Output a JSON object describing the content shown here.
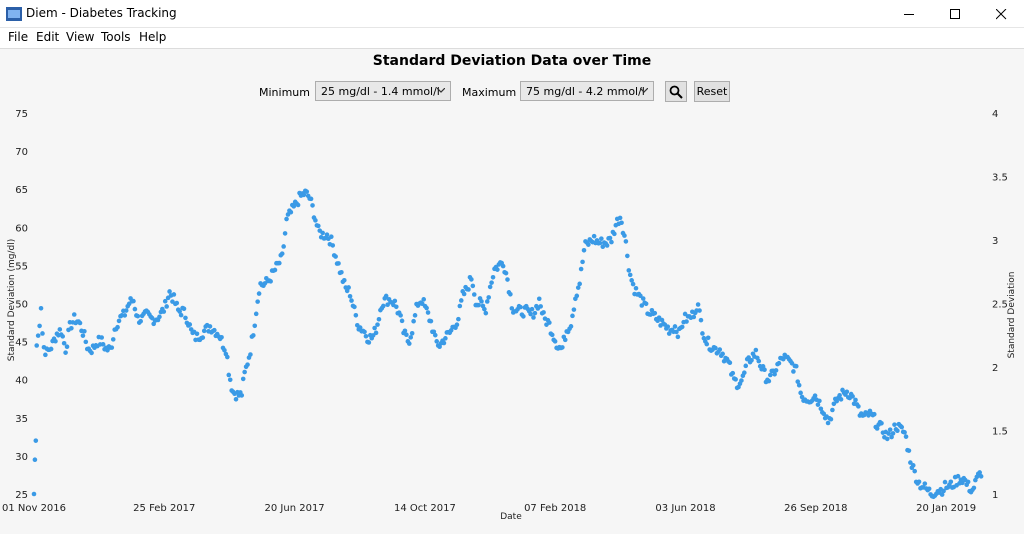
{
  "window": {
    "title": "Diem - Diabetes Tracking"
  },
  "menu": [
    "File",
    "Edit",
    "View",
    "Tools",
    "Help"
  ],
  "controls": {
    "minimum_label": "Minimum",
    "minimum_value": "25 mg/dl - 1.4 mmol/l",
    "maximum_label": "Maximum",
    "maximum_value": "75 mg/dl - 4.2 mmol/l",
    "reset_label": "Reset",
    "search_icon": "search-icon"
  },
  "colors": {
    "point": "#3a9ae6",
    "background": "#f6f6f6"
  },
  "chart_data": {
    "type": "scatter",
    "title": "Standard Deviation Data over Time",
    "xlabel": "Date",
    "ylabel": "Standard Deviation (mg/dl)",
    "y2label": "Standard Deviation",
    "x_ticks": [
      "01 Nov 2016",
      "25 Feb 2017",
      "20 Jun 2017",
      "14 Oct 2017",
      "07 Feb 2018",
      "03 Jun 2018",
      "26 Sep 2018",
      "20 Jan 2019"
    ],
    "ylim": [
      25,
      75
    ],
    "y_ticks": [
      25,
      30,
      35,
      40,
      45,
      50,
      55,
      60,
      65,
      70,
      75
    ],
    "y2lim": [
      1,
      4
    ],
    "y2_ticks": [
      "1",
      "1.5",
      "2",
      "2.5",
      "3",
      "3.5",
      "4"
    ],
    "xlim_days": [
      0,
      1057
    ],
    "grid": false,
    "profile": [
      [
        0,
        25
      ],
      [
        1,
        29.5
      ],
      [
        2,
        32
      ],
      [
        3,
        44.5
      ],
      [
        5,
        46
      ],
      [
        8,
        50
      ],
      [
        10,
        44.5
      ],
      [
        14,
        43.5
      ],
      [
        20,
        44.5
      ],
      [
        25,
        46
      ],
      [
        30,
        46.5
      ],
      [
        35,
        44
      ],
      [
        40,
        47
      ],
      [
        45,
        48
      ],
      [
        50,
        47.5
      ],
      [
        55,
        46
      ],
      [
        60,
        44
      ],
      [
        65,
        44
      ],
      [
        70,
        45
      ],
      [
        75,
        45
      ],
      [
        80,
        44
      ],
      [
        85,
        44
      ],
      [
        90,
        47
      ],
      [
        95,
        48
      ],
      [
        100,
        48.5
      ],
      [
        105,
        50
      ],
      [
        110,
        50.5
      ],
      [
        115,
        48
      ],
      [
        120,
        48
      ],
      [
        125,
        48.5
      ],
      [
        130,
        48
      ],
      [
        135,
        48
      ],
      [
        140,
        48.5
      ],
      [
        145,
        49.5
      ],
      [
        150,
        51.5
      ],
      [
        155,
        50.5
      ],
      [
        160,
        49
      ],
      [
        165,
        49
      ],
      [
        170,
        48
      ],
      [
        175,
        46
      ],
      [
        180,
        45.5
      ],
      [
        185,
        46
      ],
      [
        190,
        46.5
      ],
      [
        195,
        47
      ],
      [
        200,
        46.5
      ],
      [
        205,
        46
      ],
      [
        210,
        44.5
      ],
      [
        213,
        44
      ],
      [
        216,
        41
      ],
      [
        220,
        38.5
      ],
      [
        225,
        38
      ],
      [
        230,
        38
      ],
      [
        233,
        40.5
      ],
      [
        236,
        42
      ],
      [
        240,
        44
      ],
      [
        245,
        48
      ],
      [
        250,
        52.5
      ],
      [
        255,
        52.5
      ],
      [
        260,
        53
      ],
      [
        265,
        54
      ],
      [
        270,
        55
      ],
      [
        275,
        56
      ],
      [
        280,
        61
      ],
      [
        285,
        62
      ],
      [
        290,
        63
      ],
      [
        295,
        64
      ],
      [
        300,
        64.5
      ],
      [
        305,
        64
      ],
      [
        310,
        62
      ],
      [
        315,
        59.5
      ],
      [
        320,
        59
      ],
      [
        325,
        59
      ],
      [
        330,
        58
      ],
      [
        335,
        56
      ],
      [
        340,
        54
      ],
      [
        345,
        52
      ],
      [
        350,
        51.5
      ],
      [
        355,
        49
      ],
      [
        360,
        47
      ],
      [
        365,
        46.5
      ],
      [
        370,
        45.5
      ],
      [
        375,
        45.5
      ],
      [
        380,
        47
      ],
      [
        385,
        50
      ],
      [
        390,
        50.5
      ],
      [
        395,
        50.5
      ],
      [
        400,
        50
      ],
      [
        405,
        48.5
      ],
      [
        410,
        46
      ],
      [
        415,
        45
      ],
      [
        420,
        47
      ],
      [
        425,
        50
      ],
      [
        430,
        50.5
      ],
      [
        435,
        49
      ],
      [
        440,
        47.5
      ],
      [
        445,
        45
      ],
      [
        450,
        44.5
      ],
      [
        455,
        45.5
      ],
      [
        460,
        46
      ],
      [
        465,
        47
      ],
      [
        470,
        48
      ],
      [
        475,
        51
      ],
      [
        480,
        52
      ],
      [
        485,
        53.5
      ],
      [
        490,
        50
      ],
      [
        495,
        50
      ],
      [
        500,
        49
      ],
      [
        505,
        52
      ],
      [
        510,
        54.5
      ],
      [
        515,
        55
      ],
      [
        520,
        55.5
      ],
      [
        525,
        53
      ],
      [
        530,
        49.5
      ],
      [
        535,
        49
      ],
      [
        540,
        49
      ],
      [
        545,
        49
      ],
      [
        550,
        48.5
      ],
      [
        555,
        49
      ],
      [
        560,
        50.5
      ],
      [
        565,
        48
      ],
      [
        570,
        47.5
      ],
      [
        575,
        46
      ],
      [
        580,
        44.5
      ],
      [
        585,
        44
      ],
      [
        590,
        46.5
      ],
      [
        595,
        47.5
      ],
      [
        600,
        51
      ],
      [
        605,
        53
      ],
      [
        610,
        57.5
      ],
      [
        615,
        58
      ],
      [
        620,
        58.5
      ],
      [
        625,
        58
      ],
      [
        630,
        58
      ],
      [
        635,
        58
      ],
      [
        640,
        58.5
      ],
      [
        645,
        60.5
      ],
      [
        650,
        61.5
      ],
      [
        655,
        58.5
      ],
      [
        658,
        56
      ],
      [
        660,
        54
      ],
      [
        665,
        52
      ],
      [
        670,
        51
      ],
      [
        675,
        50
      ],
      [
        680,
        49
      ],
      [
        685,
        48.5
      ],
      [
        690,
        48
      ],
      [
        695,
        47.5
      ],
      [
        700,
        47
      ],
      [
        705,
        46.5
      ],
      [
        710,
        47
      ],
      [
        715,
        46
      ],
      [
        720,
        48
      ],
      [
        725,
        48
      ],
      [
        730,
        48.5
      ],
      [
        735,
        50
      ],
      [
        740,
        47
      ],
      [
        745,
        45
      ],
      [
        750,
        44.5
      ],
      [
        755,
        44
      ],
      [
        760,
        44
      ],
      [
        765,
        43
      ],
      [
        770,
        42
      ],
      [
        775,
        40
      ],
      [
        780,
        39.5
      ],
      [
        785,
        40
      ],
      [
        790,
        42
      ],
      [
        795,
        43
      ],
      [
        800,
        43.5
      ],
      [
        805,
        42
      ],
      [
        810,
        40.5
      ],
      [
        815,
        40
      ],
      [
        820,
        41
      ],
      [
        825,
        42
      ],
      [
        830,
        43
      ],
      [
        835,
        42.5
      ],
      [
        840,
        42
      ],
      [
        845,
        41
      ],
      [
        850,
        38
      ],
      [
        855,
        37.5
      ],
      [
        860,
        37.5
      ],
      [
        865,
        38
      ],
      [
        870,
        37
      ],
      [
        875,
        36
      ],
      [
        880,
        34.5
      ],
      [
        885,
        36
      ],
      [
        890,
        37.5
      ],
      [
        895,
        38
      ],
      [
        900,
        38.5
      ],
      [
        905,
        38
      ],
      [
        910,
        37
      ],
      [
        915,
        35.5
      ],
      [
        920,
        35
      ],
      [
        925,
        35.5
      ],
      [
        930,
        35
      ],
      [
        935,
        34
      ],
      [
        940,
        33.5
      ],
      [
        945,
        32.5
      ],
      [
        950,
        33
      ],
      [
        955,
        34
      ],
      [
        960,
        33.5
      ],
      [
        965,
        33
      ],
      [
        970,
        30
      ],
      [
        975,
        28
      ],
      [
        980,
        26.5
      ],
      [
        985,
        26
      ],
      [
        990,
        25.5
      ],
      [
        995,
        25
      ],
      [
        1000,
        25.5
      ],
      [
        1005,
        25.5
      ],
      [
        1010,
        26
      ],
      [
        1015,
        26
      ],
      [
        1020,
        26.5
      ],
      [
        1025,
        27
      ],
      [
        1030,
        27
      ],
      [
        1035,
        26
      ],
      [
        1040,
        25.5
      ],
      [
        1045,
        27
      ],
      [
        1050,
        28
      ]
    ]
  }
}
